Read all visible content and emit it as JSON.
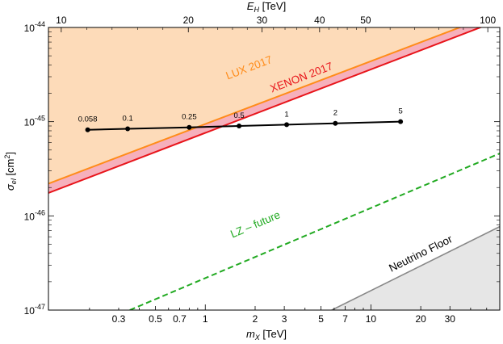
{
  "chart_data": {
    "type": "line",
    "xlabel_main": "m",
    "xlabel_sub": "X",
    "xlabel_unit": " [TeV]",
    "x2label_main": "E",
    "x2label_sub": "H",
    "x2label_unit": " [TeV]",
    "ylabel_main": "σ",
    "ylabel_sub": "el",
    "ylabel_unit_pre": " [cm",
    "ylabel_unit_sup": "2",
    "ylabel_unit_post": "]",
    "x_scale": "log",
    "y_scale": "log",
    "xlim": [
      0.113,
      60
    ],
    "ylim": [
      1e-47,
      1e-44
    ],
    "x_ticks": [
      {
        "v": 0.3,
        "label": "0.3"
      },
      {
        "v": 0.5,
        "label": "0.5"
      },
      {
        "v": 0.7,
        "label": "0.7"
      },
      {
        "v": 1,
        "label": "1"
      },
      {
        "v": 2,
        "label": "2"
      },
      {
        "v": 3,
        "label": "3"
      },
      {
        "v": 5,
        "label": "5"
      },
      {
        "v": 7,
        "label": "7"
      },
      {
        "v": 10,
        "label": "10"
      },
      {
        "v": 20,
        "label": "20"
      },
      {
        "v": 30,
        "label": "30"
      }
    ],
    "x2_ticks": [
      {
        "v": 0.135,
        "label": "10"
      },
      {
        "v": 0.79,
        "label": "20"
      },
      {
        "v": 2.2,
        "label": "30"
      },
      {
        "v": 4.9,
        "label": "40"
      },
      {
        "v": 9.3,
        "label": "50"
      },
      {
        "v": 50.8,
        "label": "100"
      }
    ],
    "y_ticks": [
      {
        "v": 1e-47,
        "base": "10",
        "exp": "-47"
      },
      {
        "v": 1e-46,
        "base": "10",
        "exp": "-46"
      },
      {
        "v": 1e-45,
        "base": "10",
        "exp": "-45"
      },
      {
        "v": 1e-44,
        "base": "10",
        "exp": "-44"
      }
    ],
    "regions": [
      {
        "name": "LUX 2017",
        "color": "#ff8c1a",
        "fill": "#fddbb9",
        "line": [
          [
            0.113,
            2.2e-46
          ],
          [
            60,
            1.45e-44
          ]
        ],
        "label": "LUX 2017"
      },
      {
        "name": "XENON 2017",
        "color": "#e8151b",
        "fill": "#f6b0bc",
        "line": [
          [
            0.113,
            1.75e-46
          ],
          [
            60,
            1.2e-44
          ]
        ],
        "label": "XENON 2017"
      },
      {
        "name": "LZ - future",
        "color": "#22aa22",
        "dashed": true,
        "line": [
          [
            0.35,
            1e-47
          ],
          [
            60,
            4.6e-46
          ]
        ],
        "label": "LZ – future"
      },
      {
        "name": "Neutrino Floor",
        "color": "#888888",
        "fill": "#e6e6e6",
        "line": [
          [
            5.8,
            1e-47
          ],
          [
            60,
            7.7e-47
          ]
        ],
        "label": "Neutrino Floor"
      }
    ],
    "series": [
      {
        "x": [
          0.195,
          0.34,
          0.8,
          1.6,
          3.1,
          6.1,
          15.1
        ],
        "y": [
          8.2e-46,
          8.4e-46,
          8.7e-46,
          9e-46,
          9.3e-46,
          9.6e-46,
          1e-45
        ],
        "point_labels": [
          "0.058",
          "0.1",
          "0.25",
          "0.5",
          "1",
          "2",
          "5"
        ],
        "color": "#000000"
      }
    ],
    "legend": "none",
    "grid": false
  }
}
